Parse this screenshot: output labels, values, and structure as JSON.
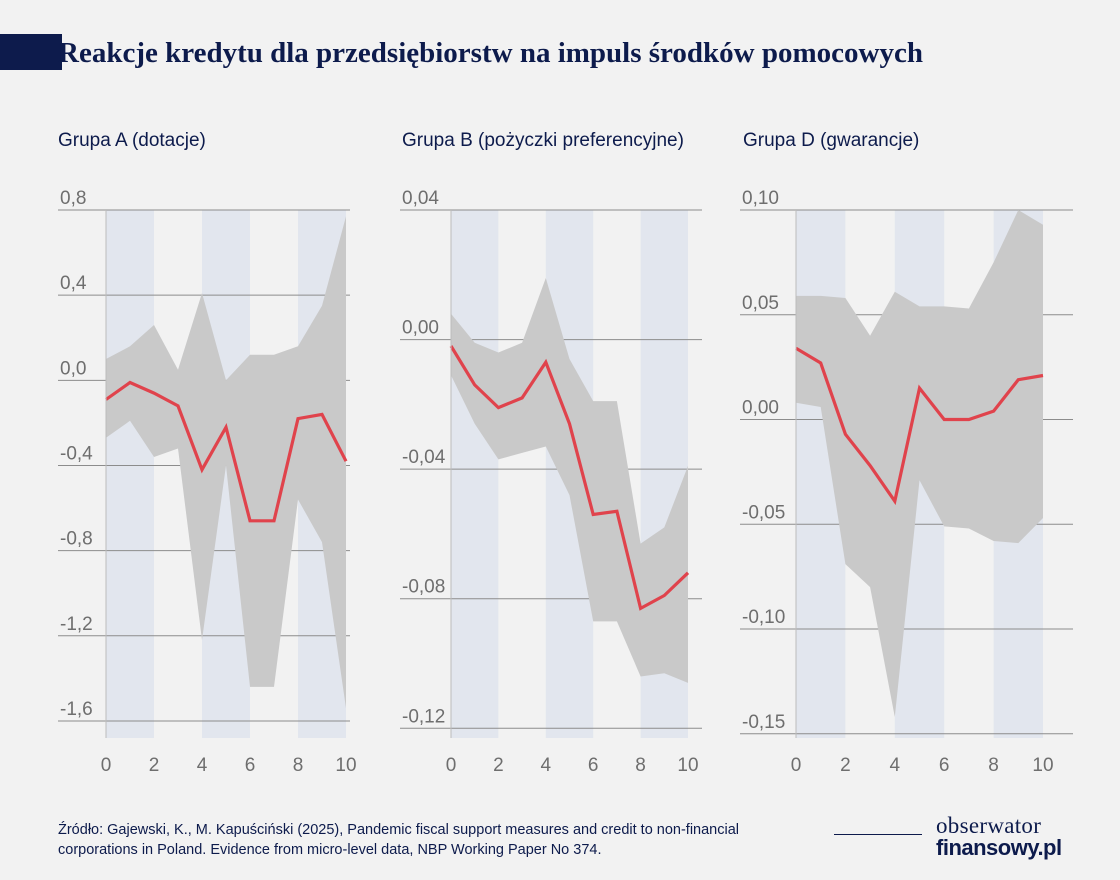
{
  "header": {
    "title": "Reakcje kredytu dla przedsiębiorstw na impuls środków pomocowych"
  },
  "footer": {
    "source_line1": "Źródło: Gajewski, K., M. Kapuściński (2025), Pandemic fiscal support measures and credit to non-financial",
    "source_line2": "corporations in Poland. Evidence from micro-level data, NBP Working Paper No 374.",
    "logo_line1": "obserwator",
    "logo_line2": "finansowy.pl"
  },
  "colors": {
    "line": "#e0434c",
    "band": "#c9c9c9",
    "stripe": "#e2e6ee",
    "grid": "#8c8c8c",
    "text": "#0d1b4c",
    "tick": "#6e6e6e"
  },
  "chart_data": [
    {
      "type": "line",
      "title": "Grupa A (dotacje)",
      "x": [
        0,
        1,
        2,
        3,
        4,
        5,
        6,
        7,
        8,
        9,
        10
      ],
      "xticks": [
        0,
        2,
        4,
        6,
        8,
        10
      ],
      "xtick_labels": [
        "0",
        "2",
        "4",
        "6",
        "8",
        "10"
      ],
      "yticks": [
        0.8,
        0.4,
        0.0,
        -0.4,
        -0.8,
        -1.2,
        -1.6
      ],
      "ytick_labels": [
        "0,8",
        "0,4",
        "0,0",
        "-0,4",
        "-0,8",
        "-1,2",
        "-1,6"
      ],
      "ylim": [
        -1.68,
        0.8
      ],
      "series": [
        {
          "values": [
            -0.09,
            -0.01,
            -0.06,
            -0.12,
            -0.42,
            -0.22,
            -0.66,
            -0.66,
            -0.18,
            -0.16,
            -0.38
          ]
        }
      ],
      "band": {
        "upper": [
          0.1,
          0.16,
          0.26,
          0.05,
          0.41,
          0.0,
          0.12,
          0.12,
          0.16,
          0.35,
          0.77
        ],
        "lower": [
          -0.27,
          -0.19,
          -0.36,
          -0.32,
          -1.22,
          -0.4,
          -1.44,
          -1.44,
          -0.56,
          -0.76,
          -1.54
        ]
      },
      "shaded_x": [
        [
          0,
          2
        ],
        [
          4,
          6
        ],
        [
          8,
          10
        ]
      ]
    },
    {
      "type": "line",
      "title": "Grupa B (pożyczki preferencyjne)",
      "x": [
        0,
        1,
        2,
        3,
        4,
        5,
        6,
        7,
        8,
        9,
        10
      ],
      "xticks": [
        0,
        2,
        4,
        6,
        8,
        10
      ],
      "xtick_labels": [
        "0",
        "2",
        "4",
        "6",
        "8",
        "10"
      ],
      "yticks": [
        0.04,
        0.0,
        -0.04,
        -0.08,
        -0.12
      ],
      "ytick_labels": [
        "0,04",
        "0,00",
        "-0,04",
        "-0,08",
        "-0,12"
      ],
      "ylim": [
        -0.123,
        0.04
      ],
      "series": [
        {
          "values": [
            -0.002,
            -0.014,
            -0.021,
            -0.018,
            -0.007,
            -0.026,
            -0.054,
            -0.053,
            -0.083,
            -0.079,
            -0.072
          ]
        }
      ],
      "band": {
        "upper": [
          0.008,
          -0.001,
          -0.004,
          -0.001,
          0.019,
          -0.006,
          -0.019,
          -0.019,
          -0.063,
          -0.058,
          -0.039
        ],
        "lower": [
          -0.011,
          -0.026,
          -0.037,
          -0.035,
          -0.033,
          -0.048,
          -0.087,
          -0.087,
          -0.104,
          -0.103,
          -0.106
        ]
      },
      "shaded_x": [
        [
          0,
          2
        ],
        [
          4,
          6
        ],
        [
          8,
          10
        ]
      ]
    },
    {
      "type": "line",
      "title": "Grupa D (gwarancje)",
      "x": [
        0,
        1,
        2,
        3,
        4,
        5,
        6,
        7,
        8,
        9,
        10
      ],
      "xticks": [
        0,
        2,
        4,
        6,
        8,
        10
      ],
      "xtick_labels": [
        "0",
        "2",
        "4",
        "6",
        "8",
        "10"
      ],
      "yticks": [
        0.1,
        0.05,
        0.0,
        -0.05,
        -0.1,
        -0.15
      ],
      "ytick_labels": [
        "0,10",
        "0,05",
        "0,00",
        "-0,05",
        "-0,10",
        "-0,15"
      ],
      "ylim": [
        -0.152,
        0.1
      ],
      "series": [
        {
          "values": [
            0.034,
            0.027,
            -0.007,
            -0.022,
            -0.039,
            0.015,
            0.0,
            0.0,
            0.004,
            0.019,
            0.021
          ]
        }
      ],
      "band": {
        "upper": [
          0.059,
          0.059,
          0.058,
          0.04,
          0.061,
          0.054,
          0.054,
          0.053,
          0.075,
          0.1,
          0.093
        ],
        "lower": [
          0.008,
          0.006,
          -0.069,
          -0.08,
          -0.142,
          -0.029,
          -0.051,
          -0.052,
          -0.058,
          -0.059,
          -0.047
        ]
      },
      "shaded_x": [
        [
          0,
          2
        ],
        [
          4,
          6
        ],
        [
          8,
          10
        ]
      ]
    }
  ]
}
